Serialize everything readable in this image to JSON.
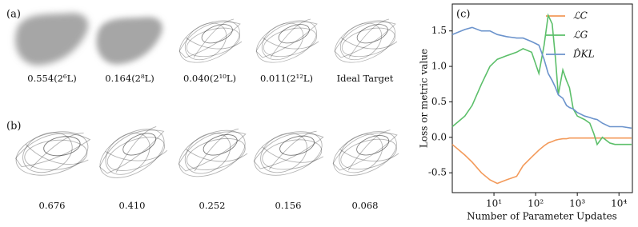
{
  "panel_a": {
    "label": "(a)",
    "captions": [
      "0.554(2⁶L)",
      "0.164(2⁸L)",
      "0.040(2¹⁰L)",
      "0.011(2¹²L)",
      "Ideal Target"
    ]
  },
  "panel_b": {
    "label": "(b)",
    "captions": [
      "0.676",
      "0.410",
      "0.252",
      "0.156",
      "0.068"
    ]
  },
  "chart_data": {
    "type": "line",
    "label": "(c)",
    "x_label": "Number of Parameter Updates",
    "y_label": "Loss or metric value",
    "xscale": "log",
    "xlim": [
      1,
      21000
    ],
    "xticks": [
      {
        "value": 10,
        "label": "10¹"
      },
      {
        "value": 100,
        "label": "10²"
      },
      {
        "value": 1000,
        "label": "10³"
      },
      {
        "value": 10000,
        "label": "10⁴"
      }
    ],
    "ylim": [
      -0.78,
      1.88
    ],
    "yticks": [
      {
        "value": -0.5,
        "label": "-0.5"
      },
      {
        "value": 0,
        "label": "0.0"
      },
      {
        "value": 0.5,
        "label": "0.5"
      },
      {
        "value": 1,
        "label": "1.0"
      },
      {
        "value": 1.5,
        "label": "1.5"
      }
    ],
    "legend": "upper right",
    "x": [
      1,
      2,
      3,
      5,
      8,
      12,
      20,
      35,
      50,
      80,
      120,
      160,
      200,
      250,
      300,
      350,
      450,
      550,
      650,
      800,
      1000,
      1500,
      2000,
      2500,
      3000,
      4000,
      6000,
      8000,
      12000,
      20000
    ],
    "series": [
      {
        "name": "ℒC",
        "color": "#f39a5a",
        "values": [
          -0.1,
          -0.25,
          -0.35,
          -0.5,
          -0.6,
          -0.65,
          -0.6,
          -0.55,
          -0.4,
          -0.28,
          -0.18,
          -0.12,
          -0.08,
          -0.06,
          -0.04,
          -0.03,
          -0.02,
          -0.02,
          -0.01,
          -0.01,
          -0.01,
          -0.01,
          -0.01,
          -0.01,
          -0.01,
          -0.01,
          -0.01,
          -0.01,
          -0.01,
          -0.01
        ]
      },
      {
        "name": "ℒG",
        "color": "#5cbf6a",
        "values": [
          0.15,
          0.3,
          0.45,
          0.75,
          1.0,
          1.1,
          1.15,
          1.2,
          1.25,
          1.2,
          0.9,
          1.3,
          1.72,
          1.6,
          1.1,
          0.6,
          0.95,
          0.8,
          0.7,
          0.4,
          0.3,
          0.25,
          0.2,
          0.05,
          -0.1,
          0.0,
          -0.08,
          -0.1,
          -0.1,
          -0.1
        ]
      },
      {
        "name": "D̂KL",
        "color": "#6b93cc",
        "values": [
          1.45,
          1.52,
          1.55,
          1.5,
          1.5,
          1.45,
          1.42,
          1.4,
          1.4,
          1.35,
          1.3,
          1.1,
          0.9,
          0.8,
          0.7,
          0.6,
          0.55,
          0.45,
          0.42,
          0.4,
          0.35,
          0.3,
          0.28,
          0.26,
          0.25,
          0.2,
          0.15,
          0.15,
          0.15,
          0.13
        ]
      }
    ]
  }
}
